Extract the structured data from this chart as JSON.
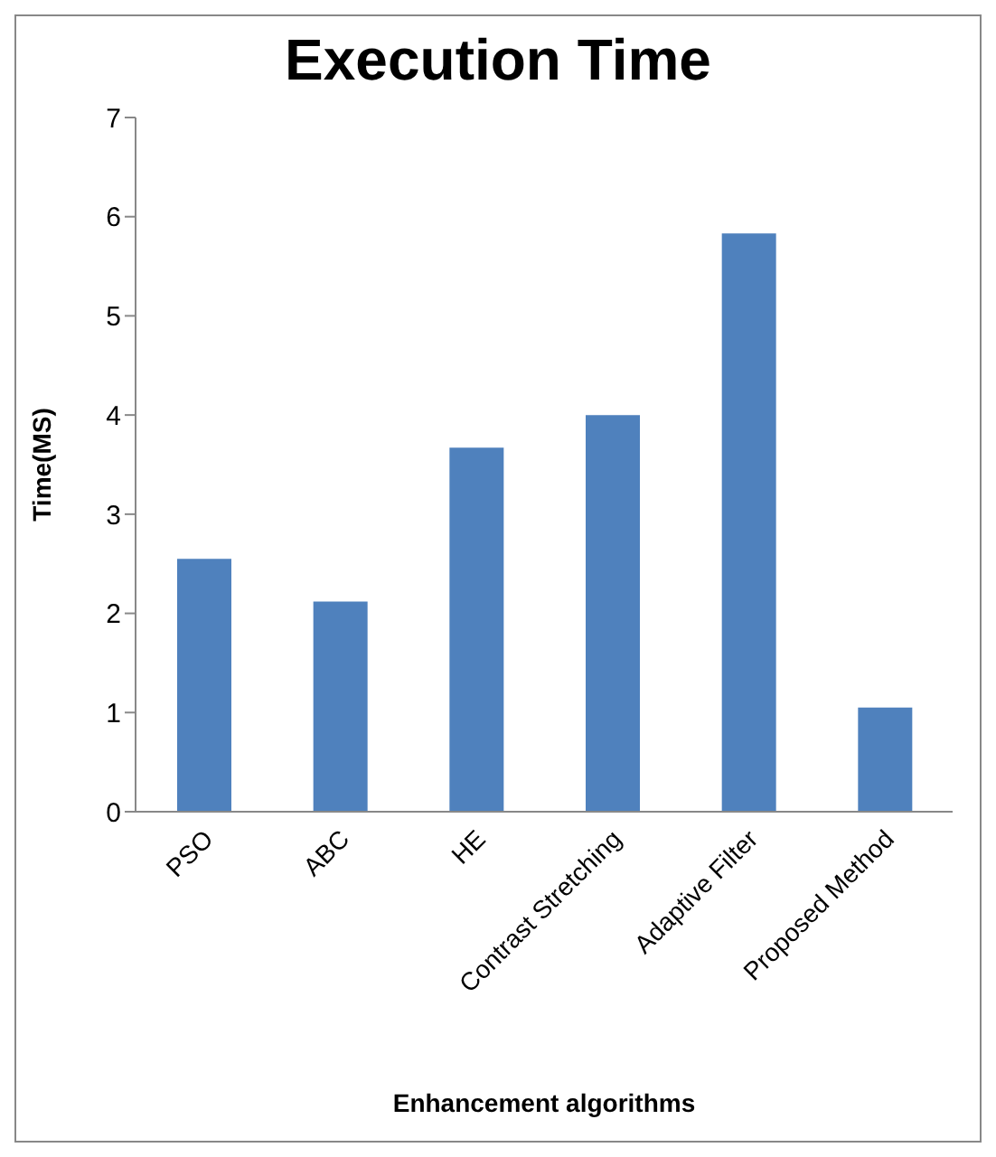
{
  "chart_data": {
    "type": "bar",
    "title": "Execution Time",
    "xlabel": "Enhancement algorithms",
    "ylabel": "Time(MS)",
    "categories": [
      "PSO",
      "ABC",
      "HE",
      "Contrast Stretching",
      "Adaptive Filter",
      "Proposed Method"
    ],
    "values": [
      2.55,
      2.12,
      3.67,
      4.0,
      5.83,
      1.05
    ],
    "color": "#4f81bd",
    "ylim": [
      0,
      7
    ],
    "yticks": [
      0,
      1,
      2,
      3,
      4,
      5,
      6,
      7
    ],
    "grid": false
  }
}
